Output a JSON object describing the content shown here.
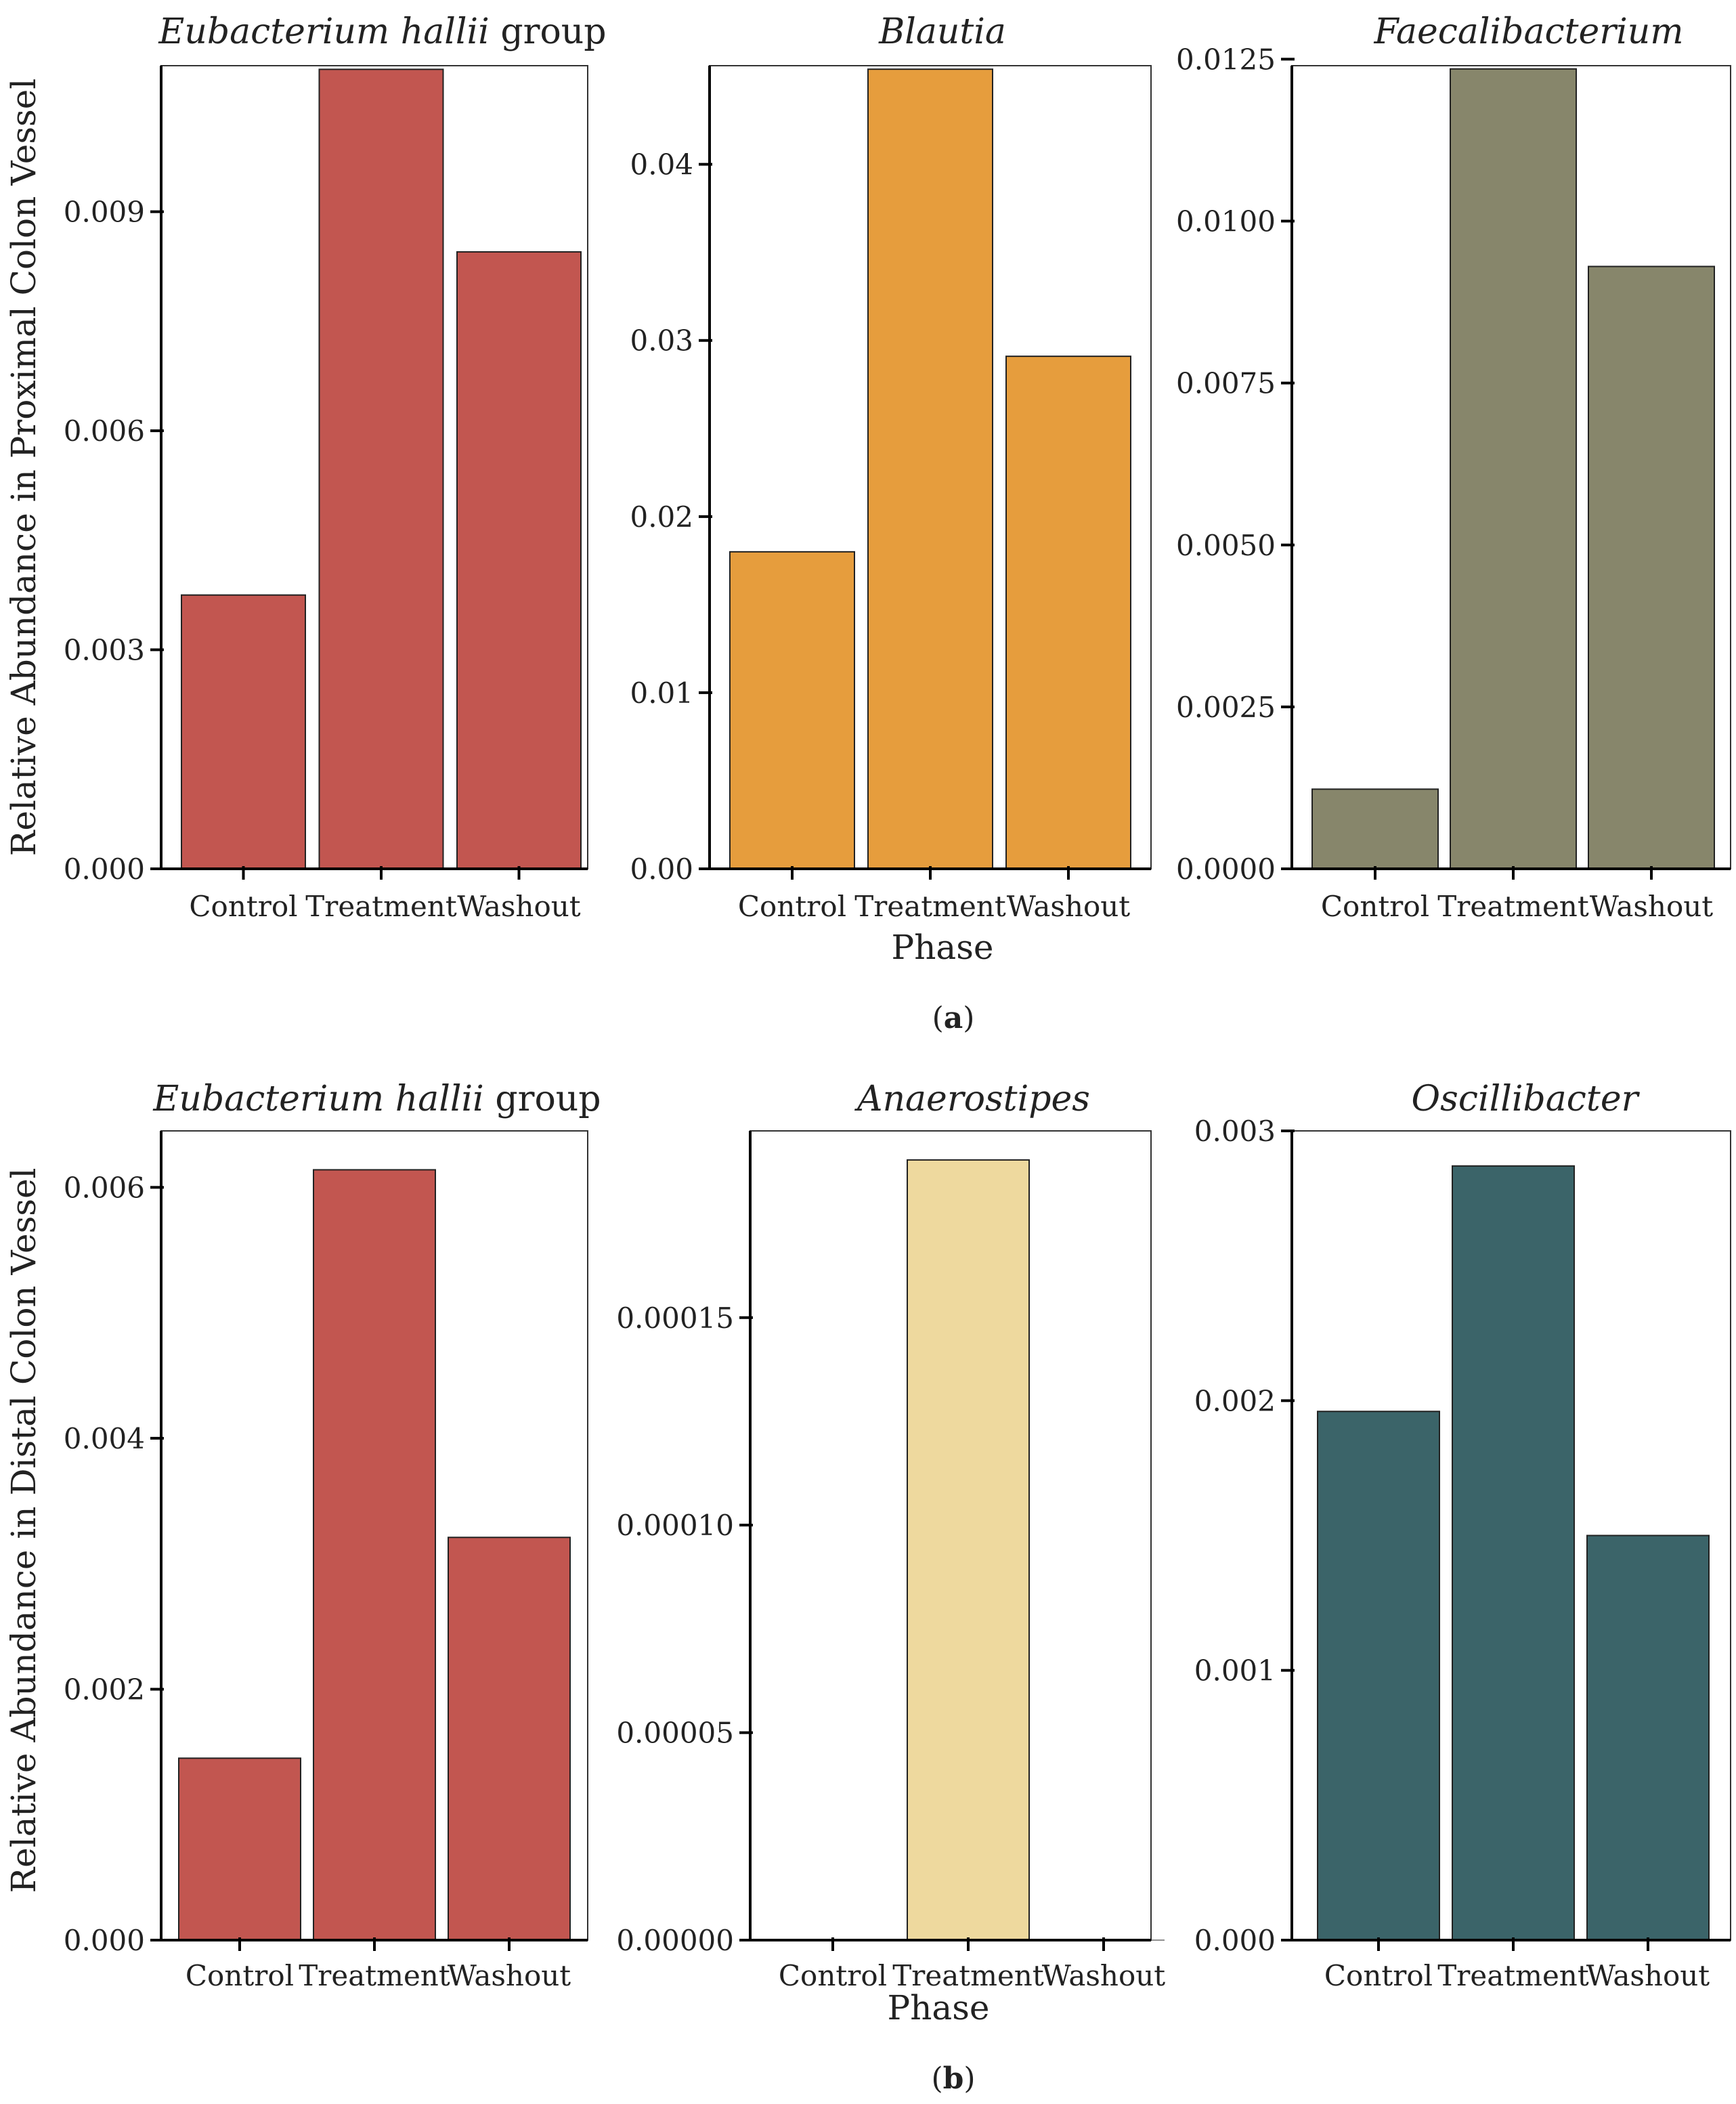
{
  "figure": {
    "row_a": {
      "ylabel": "Relative Abundance in Proximal Colon Vessel",
      "xlabel": "Phase",
      "caption": {
        "open": "(",
        "letter": "a",
        "close": ")"
      }
    },
    "row_b": {
      "ylabel": "Relative Abundance in Distal Colon Vessel",
      "xlabel": "Phase",
      "caption": {
        "open": "(",
        "letter": "b",
        "close": ")"
      }
    }
  },
  "chart_data": [
    {
      "type": "bar",
      "panel": "a1",
      "title_italic": "Eubacterium hallii",
      "title_rest": " group",
      "categories": [
        "Control",
        "Treatment",
        "Washout"
      ],
      "values": [
        0.00375,
        0.01095,
        0.00845
      ],
      "ylim": [
        0,
        0.011
      ],
      "yticks": [
        0,
        0.003,
        0.006,
        0.009
      ],
      "ytick_labels": [
        "0.000",
        "0.003",
        "0.006",
        "0.009"
      ],
      "color": "#c25650"
    },
    {
      "type": "bar",
      "panel": "a2",
      "title_italic": "Blautia",
      "title_rest": "",
      "categories": [
        "Control",
        "Treatment",
        "Washout"
      ],
      "values": [
        0.018,
        0.0454,
        0.0291
      ],
      "ylim": [
        0,
        0.0456
      ],
      "yticks": [
        0,
        0.01,
        0.02,
        0.03,
        0.04
      ],
      "ytick_labels": [
        "0.00",
        "0.01",
        "0.02",
        "0.03",
        "0.04"
      ],
      "color": "#e69d3d"
    },
    {
      "type": "bar",
      "panel": "a3",
      "title_italic": "Faecalibacterium",
      "title_rest": "",
      "categories": [
        "Control",
        "Treatment",
        "Washout"
      ],
      "values": [
        0.00123,
        0.01235,
        0.0093
      ],
      "ylim": [
        0,
        0.0124
      ],
      "yticks": [
        0,
        0.0025,
        0.005,
        0.0075,
        0.01,
        0.0125
      ],
      "ytick_labels": [
        "0.0000",
        "0.0025",
        "0.0050",
        "0.0075",
        "0.0100",
        "0.0125"
      ],
      "color": "#87866b"
    },
    {
      "type": "bar",
      "panel": "b1",
      "title_italic": "Eubacterium hallii",
      "title_rest": " group",
      "categories": [
        "Control",
        "Treatment",
        "Washout"
      ],
      "values": [
        0.00145,
        0.00614,
        0.00321
      ],
      "ylim": [
        0,
        0.00645
      ],
      "yticks": [
        0,
        0.002,
        0.004,
        0.006
      ],
      "ytick_labels": [
        "0.000",
        "0.002",
        "0.004",
        "0.006"
      ],
      "color": "#c25650"
    },
    {
      "type": "bar",
      "panel": "b2",
      "title_italic": "Anaerostipes",
      "title_rest": "",
      "categories": [
        "Control",
        "Treatment",
        "Washout"
      ],
      "values": [
        0,
        0.000188,
        0
      ],
      "ylim": [
        0,
        0.000195
      ],
      "yticks": [
        0,
        5e-05,
        0.0001,
        0.00015
      ],
      "ytick_labels": [
        "0.00000",
        "0.00005",
        "0.00010",
        "0.00015"
      ],
      "color": "#eed99e"
    },
    {
      "type": "bar",
      "panel": "b3",
      "title_italic": "Oscillibacter",
      "title_rest": "",
      "categories": [
        "Control",
        "Treatment",
        "Washout"
      ],
      "values": [
        0.00196,
        0.00287,
        0.0015
      ],
      "ylim": [
        0,
        0.003
      ],
      "yticks": [
        0,
        0.001,
        0.002,
        0.003
      ],
      "ytick_labels": [
        "0.000",
        "0.001",
        "0.002",
        "0.003"
      ],
      "color": "#3b6469"
    }
  ]
}
